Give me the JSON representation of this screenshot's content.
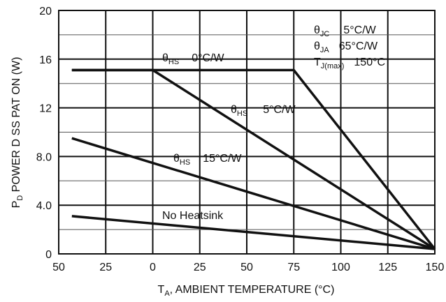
{
  "chart_data": {
    "type": "line",
    "title": "",
    "x_axis": {
      "label_main": "T",
      "label_sub": "A",
      "label_rest": ", AMBIENT TEMPERATURE (°C)",
      "range": [
        -50,
        150
      ],
      "ticks": [
        -50,
        -25,
        0,
        25,
        50,
        75,
        100,
        125,
        150
      ],
      "tick_labels": [
        "50",
        "25",
        "0",
        "25",
        "50",
        "75",
        "100",
        "125",
        "150"
      ]
    },
    "y_axis": {
      "label_main": "P",
      "label_sub": "D",
      "label_rest": "  POWER D SS PAT ON (W)",
      "range": [
        0,
        20
      ],
      "ticks": [
        0,
        4,
        8,
        12,
        16,
        20
      ],
      "tick_labels": [
        "0",
        "4.0",
        "8.0",
        "12",
        "16",
        "20"
      ]
    },
    "grid": true,
    "series": [
      {
        "name": "θHS 0°C/W",
        "points": [
          [
            -43,
            15.1
          ],
          [
            75,
            15.1
          ],
          [
            150,
            0.4
          ]
        ]
      },
      {
        "name": "θHS 5°C/W",
        "points": [
          [
            -43,
            15.1
          ],
          [
            0,
            15.1
          ],
          [
            150,
            0.4
          ]
        ]
      },
      {
        "name": "θHS 15°C/W",
        "points": [
          [
            -43,
            9.5
          ],
          [
            150,
            0.4
          ]
        ]
      },
      {
        "name": "No Heatsink",
        "points": [
          [
            -43,
            3.1
          ],
          [
            150,
            0.4
          ]
        ]
      }
    ],
    "annotations": [
      {
        "main": "θ",
        "sub": "HS",
        "value": "0°C/W"
      },
      {
        "main": "θ",
        "sub": "HS",
        "value": "5°C/W"
      },
      {
        "main": "θ",
        "sub": "HS",
        "value": "15°C/W"
      },
      {
        "main": "No Heatsink",
        "sub": "",
        "value": ""
      }
    ],
    "specs": [
      {
        "main": "θ",
        "sub": "JC",
        "value": "5°C/W"
      },
      {
        "main": "θ",
        "sub": "JA",
        "value": "65°C/W"
      },
      {
        "main": "T",
        "sub": "J(max)",
        "value": "150°C"
      }
    ]
  }
}
